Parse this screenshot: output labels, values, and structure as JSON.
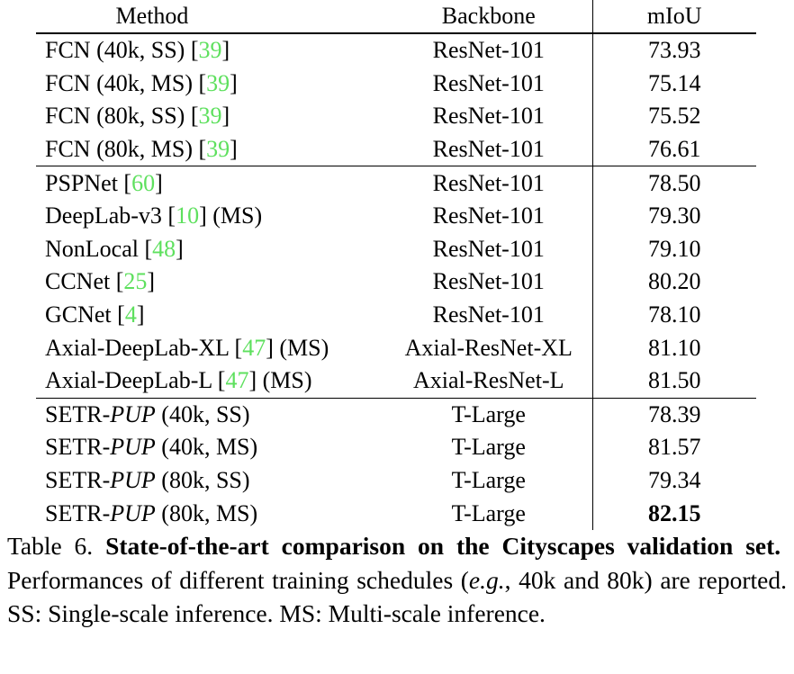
{
  "table": {
    "headers": {
      "method": "Method",
      "backbone": "Backbone",
      "miou": "mIoU"
    },
    "groups": [
      [
        {
          "prefix": "FCN (40k, SS) [",
          "ref": "39",
          "suffix": "]",
          "backbone": "ResNet-101",
          "miou": "73.93"
        },
        {
          "prefix": "FCN (40k, MS) [",
          "ref": "39",
          "suffix": "]",
          "backbone": "ResNet-101",
          "miou": "75.14"
        },
        {
          "prefix": "FCN (80k, SS) [",
          "ref": "39",
          "suffix": "]",
          "backbone": "ResNet-101",
          "miou": "75.52"
        },
        {
          "prefix": "FCN (80k, MS) [",
          "ref": "39",
          "suffix": "]",
          "backbone": "ResNet-101",
          "miou": "76.61"
        }
      ],
      [
        {
          "prefix": "PSPNet [",
          "ref": "60",
          "suffix": "]",
          "backbone": "ResNet-101",
          "miou": "78.50"
        },
        {
          "prefix": "DeepLab-v3 [",
          "ref": "10",
          "suffix": "] (MS)",
          "backbone": "ResNet-101",
          "miou": "79.30"
        },
        {
          "prefix": "NonLocal [",
          "ref": "48",
          "suffix": "]",
          "backbone": "ResNet-101",
          "miou": "79.10"
        },
        {
          "prefix": "CCNet [",
          "ref": "25",
          "suffix": "]",
          "backbone": "ResNet-101",
          "miou": "80.20"
        },
        {
          "prefix": "GCNet [",
          "ref": "4",
          "suffix": "]",
          "backbone": "ResNet-101",
          "miou": "78.10"
        },
        {
          "prefix": "Axial-DeepLab-XL [",
          "ref": "47",
          "suffix": "] (MS)",
          "backbone": "Axial-ResNet-XL",
          "miou": "81.10"
        },
        {
          "prefix": "Axial-DeepLab-L [",
          "ref": "47",
          "suffix": "] (MS)",
          "backbone": "Axial-ResNet-L",
          "miou": "81.50"
        }
      ],
      [
        {
          "prefix": "SETR-",
          "italic": "PUP",
          "suffix": " (40k, SS)",
          "backbone": "T-Large",
          "miou": "78.39"
        },
        {
          "prefix": "SETR-",
          "italic": "PUP",
          "suffix": " (40k, MS)",
          "backbone": "T-Large",
          "miou": "81.57"
        },
        {
          "prefix": "SETR-",
          "italic": "PUP",
          "suffix": " (80k, SS)",
          "backbone": "T-Large",
          "miou": "79.34"
        },
        {
          "prefix": "SETR-",
          "italic": "PUP",
          "suffix": " (80k, MS)",
          "backbone": "T-Large",
          "miou": "82.15",
          "bold": true
        }
      ]
    ]
  },
  "caption": {
    "label": "Table 6.",
    "title": "State-of-the-art comparison on the Cityscapes validation set.",
    "text_1": "Performances of different training schedules (",
    "eg": "e.g.",
    "text_2": ", 40k and 80k) are reported.  SS: Single-scale inference.  MS: Multi-scale inference."
  },
  "colors": {
    "reference_link": "#5ee05e"
  }
}
